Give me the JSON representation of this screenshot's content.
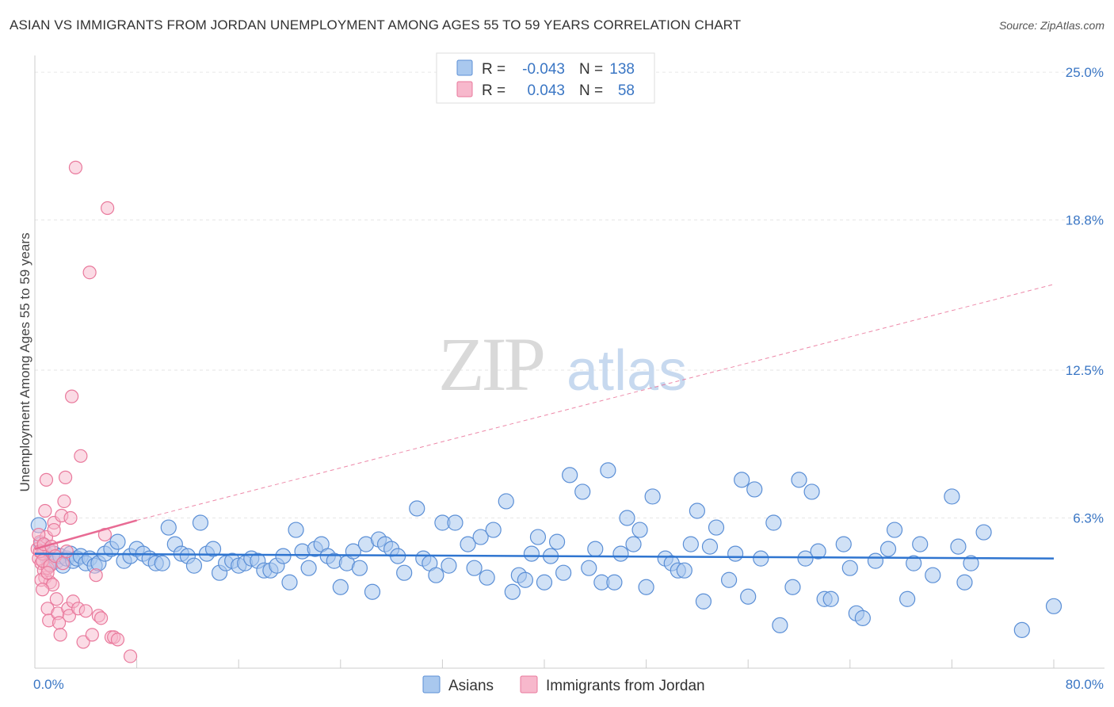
{
  "title": "ASIAN VS IMMIGRANTS FROM JORDAN UNEMPLOYMENT AMONG AGES 55 TO 59 YEARS CORRELATION CHART",
  "source": "Source: ZipAtlas.com",
  "colors": {
    "asian_fill": "#a9c8ee",
    "asian_stroke": "#5b8fd6",
    "asian_line": "#2f75d0",
    "jordan_fill": "#f7b8cc",
    "jordan_stroke": "#e9799c",
    "jordan_line": "#e86b94",
    "axis_text": "#3a76c4",
    "grid": "#e6e6e6"
  },
  "legend": {
    "r_label": "R =",
    "n_label": "N =",
    "series": [
      {
        "r": "-0.043",
        "n": "138"
      },
      {
        "r": "0.043",
        "n": "58"
      }
    ]
  },
  "watermark": {
    "zip": "ZIP",
    "atlas": "atlas"
  },
  "chart_data": {
    "type": "scatter",
    "title": "ASIAN VS IMMIGRANTS FROM JORDAN UNEMPLOYMENT AMONG AGES 55 TO 59 YEARS CORRELATION CHART",
    "xlabel": "",
    "ylabel": "Unemployment Among Ages 55 to 59 years",
    "xlim": [
      0,
      80
    ],
    "ylim": [
      0,
      26
    ],
    "x_tick_labels": [
      "0.0%",
      "80.0%"
    ],
    "y_ticks": [
      6.3,
      12.5,
      18.8,
      25.0
    ],
    "y_tick_labels": [
      "6.3%",
      "12.5%",
      "18.8%",
      "25.0%"
    ],
    "grid": true,
    "legend_position": "top-center",
    "series": [
      {
        "name": "Asians",
        "r": -0.043,
        "n": 138,
        "trend": {
          "x": [
            0,
            80
          ],
          "y": [
            4.8,
            4.6
          ],
          "dashed_extension": false
        },
        "points": [
          [
            0.3,
            6.0
          ],
          [
            0.5,
            5.2
          ],
          [
            0.8,
            4.8
          ],
          [
            1.0,
            4.6
          ],
          [
            1.2,
            4.4
          ],
          [
            1.5,
            4.8
          ],
          [
            1.7,
            4.5
          ],
          [
            2.0,
            4.7
          ],
          [
            2.2,
            4.3
          ],
          [
            2.5,
            4.6
          ],
          [
            2.8,
            4.8
          ],
          [
            3.0,
            4.5
          ],
          [
            3.3,
            4.6
          ],
          [
            3.6,
            4.7
          ],
          [
            4.0,
            4.4
          ],
          [
            4.3,
            4.6
          ],
          [
            4.7,
            4.3
          ],
          [
            5.0,
            4.4
          ],
          [
            5.5,
            4.8
          ],
          [
            6.0,
            5.0
          ],
          [
            6.5,
            5.3
          ],
          [
            7.0,
            4.5
          ],
          [
            7.5,
            4.7
          ],
          [
            8.0,
            5.0
          ],
          [
            8.5,
            4.8
          ],
          [
            9.0,
            4.6
          ],
          [
            9.5,
            4.4
          ],
          [
            10.0,
            4.4
          ],
          [
            10.5,
            5.9
          ],
          [
            11.0,
            5.2
          ],
          [
            11.5,
            4.8
          ],
          [
            12.0,
            4.7
          ],
          [
            12.5,
            4.3
          ],
          [
            13.0,
            6.1
          ],
          [
            13.5,
            4.8
          ],
          [
            14.0,
            5.0
          ],
          [
            14.5,
            4.0
          ],
          [
            15.0,
            4.4
          ],
          [
            15.5,
            4.5
          ],
          [
            16.0,
            4.3
          ],
          [
            16.5,
            4.4
          ],
          [
            17.0,
            4.6
          ],
          [
            17.5,
            4.5
          ],
          [
            18.0,
            4.1
          ],
          [
            18.5,
            4.1
          ],
          [
            19.0,
            4.3
          ],
          [
            19.5,
            4.7
          ],
          [
            20.0,
            3.6
          ],
          [
            20.5,
            5.8
          ],
          [
            21.0,
            4.9
          ],
          [
            21.5,
            4.2
          ],
          [
            22.0,
            5.0
          ],
          [
            22.5,
            5.2
          ],
          [
            23.0,
            4.7
          ],
          [
            23.5,
            4.5
          ],
          [
            24.0,
            3.4
          ],
          [
            24.5,
            4.4
          ],
          [
            25.0,
            4.9
          ],
          [
            25.5,
            4.2
          ],
          [
            26.0,
            5.2
          ],
          [
            26.5,
            3.2
          ],
          [
            27.0,
            5.4
          ],
          [
            27.5,
            5.2
          ],
          [
            28.0,
            5.0
          ],
          [
            28.5,
            4.7
          ],
          [
            29.0,
            4.0
          ],
          [
            30.0,
            6.7
          ],
          [
            30.5,
            4.6
          ],
          [
            31.0,
            4.4
          ],
          [
            31.5,
            3.9
          ],
          [
            32.0,
            6.1
          ],
          [
            32.5,
            4.3
          ],
          [
            33.0,
            6.1
          ],
          [
            34.0,
            5.2
          ],
          [
            34.5,
            4.2
          ],
          [
            35.0,
            5.5
          ],
          [
            35.5,
            3.8
          ],
          [
            36.0,
            5.8
          ],
          [
            37.0,
            7.0
          ],
          [
            37.5,
            3.2
          ],
          [
            38.0,
            3.9
          ],
          [
            38.5,
            3.7
          ],
          [
            39.0,
            4.8
          ],
          [
            39.5,
            5.5
          ],
          [
            40.0,
            3.6
          ],
          [
            40.5,
            4.7
          ],
          [
            41.0,
            5.3
          ],
          [
            41.5,
            4.0
          ],
          [
            42.0,
            8.1
          ],
          [
            43.0,
            7.4
          ],
          [
            43.5,
            4.2
          ],
          [
            44.0,
            5.0
          ],
          [
            44.5,
            3.6
          ],
          [
            45.0,
            8.3
          ],
          [
            45.5,
            3.6
          ],
          [
            46.0,
            4.8
          ],
          [
            46.5,
            6.3
          ],
          [
            47.0,
            5.2
          ],
          [
            47.5,
            5.8
          ],
          [
            48.0,
            3.4
          ],
          [
            48.5,
            7.2
          ],
          [
            49.5,
            4.6
          ],
          [
            50.0,
            4.4
          ],
          [
            50.5,
            4.1
          ],
          [
            51.0,
            4.1
          ],
          [
            51.5,
            5.2
          ],
          [
            52.0,
            6.6
          ],
          [
            52.5,
            2.8
          ],
          [
            53.0,
            5.1
          ],
          [
            53.5,
            5.9
          ],
          [
            54.5,
            3.7
          ],
          [
            55.0,
            4.8
          ],
          [
            55.5,
            7.9
          ],
          [
            56.0,
            3.0
          ],
          [
            56.5,
            7.5
          ],
          [
            57.0,
            4.6
          ],
          [
            58.0,
            6.1
          ],
          [
            58.5,
            1.8
          ],
          [
            59.5,
            3.4
          ],
          [
            60.0,
            7.9
          ],
          [
            60.5,
            4.6
          ],
          [
            61.0,
            7.4
          ],
          [
            61.5,
            4.9
          ],
          [
            62.0,
            2.9
          ],
          [
            62.5,
            2.9
          ],
          [
            63.5,
            5.2
          ],
          [
            64.0,
            4.2
          ],
          [
            64.5,
            2.3
          ],
          [
            65.0,
            2.1
          ],
          [
            66.0,
            4.5
          ],
          [
            67.0,
            5.0
          ],
          [
            67.5,
            5.8
          ],
          [
            68.5,
            2.9
          ],
          [
            69.0,
            4.4
          ],
          [
            69.5,
            5.2
          ],
          [
            70.5,
            3.9
          ],
          [
            72.0,
            7.2
          ],
          [
            72.5,
            5.1
          ],
          [
            73.0,
            3.6
          ],
          [
            73.5,
            4.4
          ],
          [
            74.5,
            5.7
          ],
          [
            77.5,
            1.6
          ],
          [
            80.0,
            2.6
          ]
        ]
      },
      {
        "name": "Immigrants from Jordan",
        "r": 0.043,
        "n": 58,
        "trend": {
          "x": [
            0,
            8
          ],
          "y": [
            5.0,
            6.2
          ],
          "dashed_extension": true,
          "extended_to": [
            80,
            16.1
          ]
        },
        "points": [
          [
            0.2,
            5.0
          ],
          [
            0.3,
            4.6
          ],
          [
            0.4,
            5.3
          ],
          [
            0.5,
            4.4
          ],
          [
            0.6,
            4.8
          ],
          [
            0.7,
            4.1
          ],
          [
            0.8,
            3.8
          ],
          [
            0.9,
            5.5
          ],
          [
            1.0,
            4.2
          ],
          [
            1.1,
            5.0
          ],
          [
            1.2,
            3.6
          ],
          [
            0.3,
            5.6
          ],
          [
            0.4,
            4.9
          ],
          [
            0.5,
            3.7
          ],
          [
            0.6,
            4.5
          ],
          [
            0.7,
            5.2
          ],
          [
            0.8,
            6.6
          ],
          [
            0.9,
            7.9
          ],
          [
            1.0,
            2.5
          ],
          [
            1.1,
            2.0
          ],
          [
            1.2,
            4.3
          ],
          [
            1.3,
            5.1
          ],
          [
            1.4,
            3.5
          ],
          [
            1.5,
            6.1
          ],
          [
            1.6,
            4.7
          ],
          [
            1.7,
            2.9
          ],
          [
            1.8,
            2.3
          ],
          [
            1.9,
            1.9
          ],
          [
            2.0,
            1.4
          ],
          [
            2.1,
            6.4
          ],
          [
            2.2,
            4.4
          ],
          [
            2.3,
            7.0
          ],
          [
            2.4,
            8.0
          ],
          [
            2.5,
            4.9
          ],
          [
            2.6,
            2.5
          ],
          [
            2.7,
            2.2
          ],
          [
            2.8,
            6.3
          ],
          [
            2.9,
            11.4
          ],
          [
            3.0,
            2.8
          ],
          [
            3.2,
            21.0
          ],
          [
            3.4,
            2.5
          ],
          [
            3.6,
            8.9
          ],
          [
            3.8,
            1.1
          ],
          [
            4.0,
            2.4
          ],
          [
            4.3,
            16.6
          ],
          [
            4.5,
            1.4
          ],
          [
            4.8,
            3.9
          ],
          [
            5.0,
            2.2
          ],
          [
            5.2,
            2.1
          ],
          [
            5.5,
            5.6
          ],
          [
            5.7,
            19.3
          ],
          [
            6.0,
            1.3
          ],
          [
            6.2,
            1.3
          ],
          [
            6.5,
            1.2
          ],
          [
            7.5,
            0.5
          ],
          [
            1.5,
            5.8
          ],
          [
            0.6,
            3.3
          ],
          [
            1.0,
            4.0
          ]
        ]
      }
    ]
  }
}
